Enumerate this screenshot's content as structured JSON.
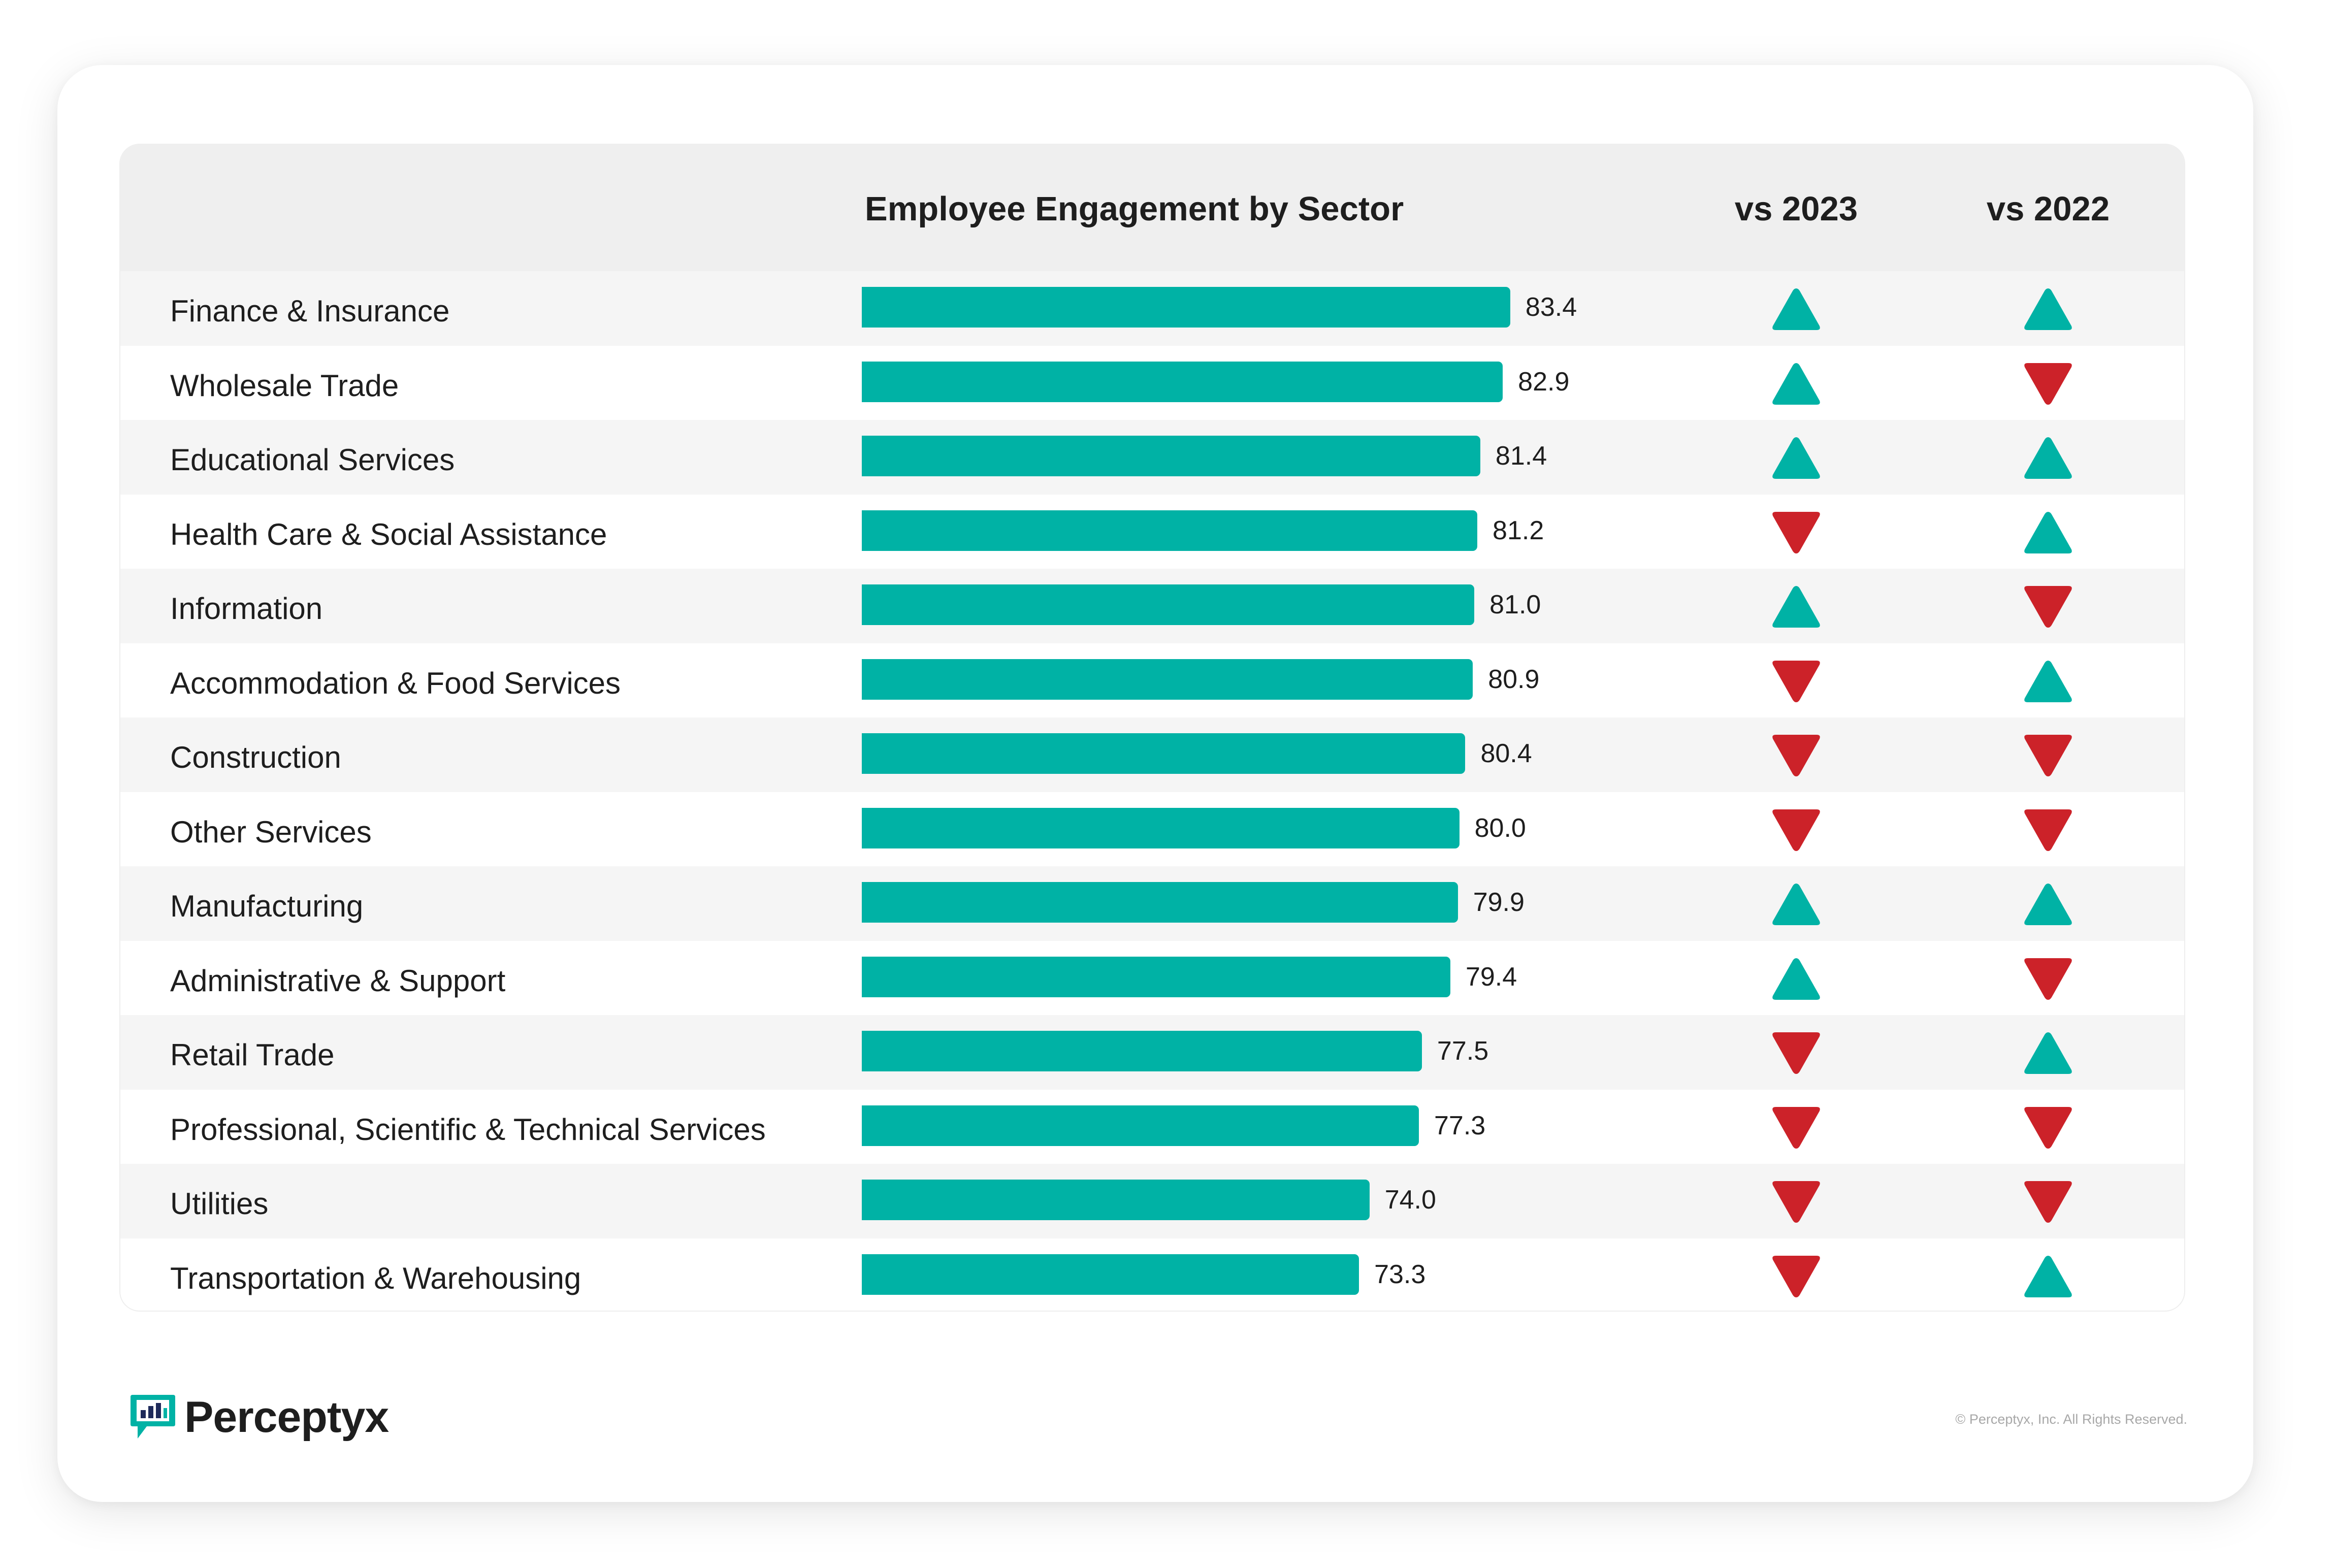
{
  "header": {
    "title": "Employee Engagement by Sector",
    "col_2023": "vs 2023",
    "col_2022": "vs 2022"
  },
  "colors": {
    "bar": "#00b2a5",
    "up": "#00b2a5",
    "down": "#cc2229"
  },
  "chart_data": {
    "type": "bar",
    "orientation": "horizontal",
    "title": "Employee Engagement by Sector",
    "categories": [
      "Finance & Insurance",
      "Wholesale Trade",
      "Educational Services",
      "Health Care & Social Assistance",
      "Information",
      "Accommodation & Food Services",
      "Construction",
      "Other Services",
      "Manufacturing",
      "Administrative & Support",
      "Retail Trade",
      "Professional, Scientific & Technical Services",
      "Utilities",
      "Transportation & Warehousing"
    ],
    "values": [
      83.4,
      82.9,
      81.4,
      81.2,
      81.0,
      80.9,
      80.4,
      80.0,
      79.9,
      79.4,
      77.5,
      77.3,
      74.0,
      73.3
    ],
    "value_labels": [
      "83.4",
      "82.9",
      "81.4",
      "81.2",
      "81.0",
      "80.9",
      "80.4",
      "80.0",
      "79.9",
      "79.4",
      "77.5",
      "77.3",
      "74.0",
      "73.3"
    ],
    "vs_2023": [
      "up",
      "up",
      "up",
      "down",
      "up",
      "down",
      "down",
      "down",
      "up",
      "up",
      "down",
      "down",
      "down",
      "down"
    ],
    "vs_2022": [
      "up",
      "down",
      "up",
      "up",
      "down",
      "up",
      "down",
      "down",
      "up",
      "down",
      "up",
      "down",
      "down",
      "up"
    ]
  },
  "footer": {
    "logo_text": "Perceptyx",
    "logo_icon": "chat-bubble-bar-chart-icon",
    "copyright": "© Perceptyx, Inc. All Rights Reserved."
  }
}
